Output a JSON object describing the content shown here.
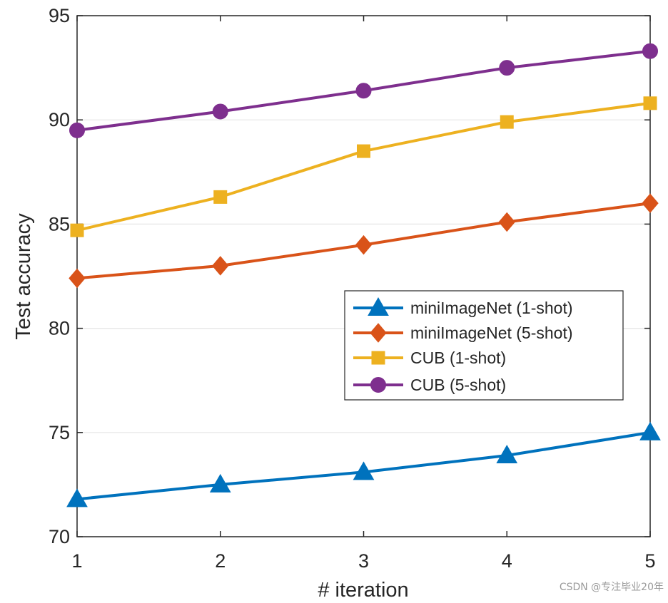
{
  "chart_data": {
    "type": "line",
    "title": "",
    "xlabel": "# iteration",
    "ylabel": "Test accuracy",
    "x": [
      1,
      2,
      3,
      4,
      5
    ],
    "xlim": [
      1,
      5
    ],
    "ylim": [
      70,
      95
    ],
    "xticks": [
      "1",
      "2",
      "3",
      "4",
      "5"
    ],
    "yticks": [
      "70",
      "75",
      "80",
      "85",
      "90",
      "95"
    ],
    "grid": true,
    "legend_position": "right-middle",
    "series": [
      {
        "name": "miniImageNet (1-shot)",
        "marker": "triangle",
        "color": "#0072BD",
        "values": [
          71.8,
          72.5,
          73.1,
          73.9,
          75.0
        ]
      },
      {
        "name": "miniImageNet (5-shot)",
        "marker": "diamond",
        "color": "#D95319",
        "values": [
          82.4,
          83.0,
          84.0,
          85.1,
          86.0
        ]
      },
      {
        "name": "CUB (1-shot)",
        "marker": "square",
        "color": "#EDB120",
        "values": [
          84.7,
          86.3,
          88.5,
          89.9,
          90.8
        ]
      },
      {
        "name": "CUB (5-shot)",
        "marker": "circle",
        "color": "#7E2F8E",
        "values": [
          89.5,
          90.4,
          91.4,
          92.5,
          93.3
        ]
      }
    ]
  },
  "watermark": "CSDN @专注毕业20年"
}
